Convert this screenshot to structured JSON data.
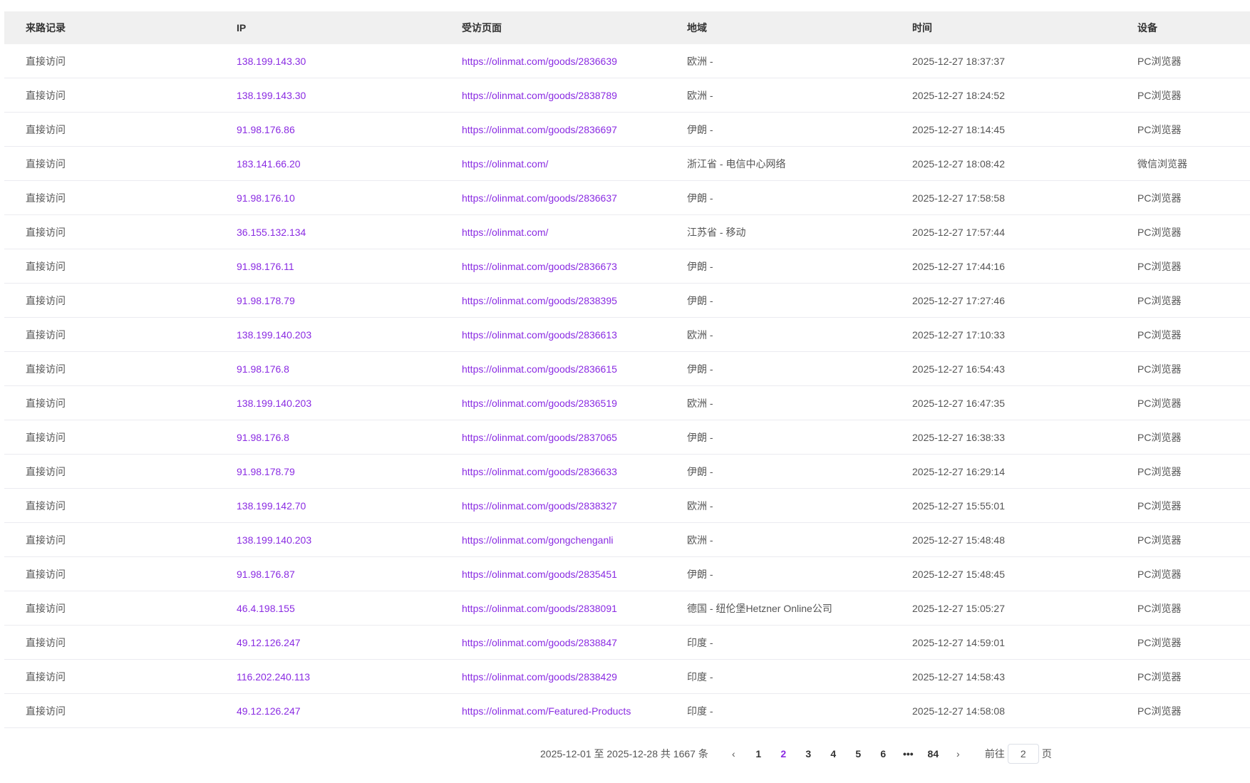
{
  "columns": [
    "来路记录",
    "IP",
    "受访页面",
    "地域",
    "时间",
    "设备"
  ],
  "rows": [
    [
      "直接访问",
      "138.199.143.30",
      "https://olinmat.com/goods/2836639",
      "欧洲 -",
      "2025-12-27 18:37:37",
      "PC浏览器"
    ],
    [
      "直接访问",
      "138.199.143.30",
      "https://olinmat.com/goods/2838789",
      "欧洲 -",
      "2025-12-27 18:24:52",
      "PC浏览器"
    ],
    [
      "直接访问",
      "91.98.176.86",
      "https://olinmat.com/goods/2836697",
      "伊朗 -",
      "2025-12-27 18:14:45",
      "PC浏览器"
    ],
    [
      "直接访问",
      "183.141.66.20",
      "https://olinmat.com/",
      "浙江省 - 电信中心网络",
      "2025-12-27 18:08:42",
      "微信浏览器"
    ],
    [
      "直接访问",
      "91.98.176.10",
      "https://olinmat.com/goods/2836637",
      "伊朗 -",
      "2025-12-27 17:58:58",
      "PC浏览器"
    ],
    [
      "直接访问",
      "36.155.132.134",
      "https://olinmat.com/",
      "江苏省 - 移动",
      "2025-12-27 17:57:44",
      "PC浏览器"
    ],
    [
      "直接访问",
      "91.98.176.11",
      "https://olinmat.com/goods/2836673",
      "伊朗 -",
      "2025-12-27 17:44:16",
      "PC浏览器"
    ],
    [
      "直接访问",
      "91.98.178.79",
      "https://olinmat.com/goods/2838395",
      "伊朗 -",
      "2025-12-27 17:27:46",
      "PC浏览器"
    ],
    [
      "直接访问",
      "138.199.140.203",
      "https://olinmat.com/goods/2836613",
      "欧洲 -",
      "2025-12-27 17:10:33",
      "PC浏览器"
    ],
    [
      "直接访问",
      "91.98.176.8",
      "https://olinmat.com/goods/2836615",
      "伊朗 -",
      "2025-12-27 16:54:43",
      "PC浏览器"
    ],
    [
      "直接访问",
      "138.199.140.203",
      "https://olinmat.com/goods/2836519",
      "欧洲 -",
      "2025-12-27 16:47:35",
      "PC浏览器"
    ],
    [
      "直接访问",
      "91.98.176.8",
      "https://olinmat.com/goods/2837065",
      "伊朗 -",
      "2025-12-27 16:38:33",
      "PC浏览器"
    ],
    [
      "直接访问",
      "91.98.178.79",
      "https://olinmat.com/goods/2836633",
      "伊朗 -",
      "2025-12-27 16:29:14",
      "PC浏览器"
    ],
    [
      "直接访问",
      "138.199.142.70",
      "https://olinmat.com/goods/2838327",
      "欧洲 -",
      "2025-12-27 15:55:01",
      "PC浏览器"
    ],
    [
      "直接访问",
      "138.199.140.203",
      "https://olinmat.com/gongchenganli",
      "欧洲 -",
      "2025-12-27 15:48:48",
      "PC浏览器"
    ],
    [
      "直接访问",
      "91.98.176.87",
      "https://olinmat.com/goods/2835451",
      "伊朗 -",
      "2025-12-27 15:48:45",
      "PC浏览器"
    ],
    [
      "直接访问",
      "46.4.198.155",
      "https://olinmat.com/goods/2838091",
      "德国 - 纽伦堡Hetzner Online公司",
      "2025-12-27 15:05:27",
      "PC浏览器"
    ],
    [
      "直接访问",
      "49.12.126.247",
      "https://olinmat.com/goods/2838847",
      "印度 -",
      "2025-12-27 14:59:01",
      "PC浏览器"
    ],
    [
      "直接访问",
      "116.202.240.113",
      "https://olinmat.com/goods/2838429",
      "印度 -",
      "2025-12-27 14:58:43",
      "PC浏览器"
    ],
    [
      "直接访问",
      "49.12.126.247",
      "https://olinmat.com/Featured-Products",
      "印度 -",
      "2025-12-27 14:58:08",
      "PC浏览器"
    ]
  ],
  "pagination": {
    "summary": "2025-12-01 至 2025-12-28 共 1667 条",
    "prev_icon": "chevron-left-icon",
    "next_icon": "chevron-right-icon",
    "pages": [
      "1",
      "2",
      "3",
      "4",
      "5",
      "6",
      "•••",
      "84"
    ],
    "current": "2",
    "goto_label": "前往",
    "goto_value": "2",
    "goto_suffix": "页"
  },
  "colors": {
    "accent": "#8a2be2",
    "header_bg": "#f0f0f0"
  }
}
